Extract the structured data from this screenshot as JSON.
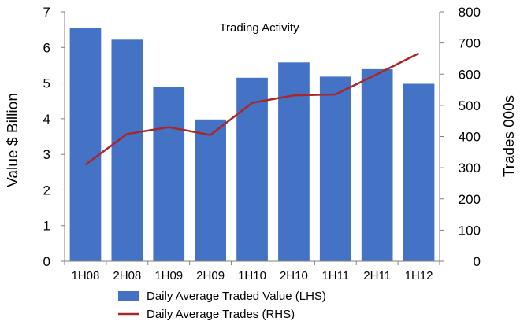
{
  "chart_data": {
    "type": "bar",
    "title": "Trading Activity",
    "categories": [
      "1H08",
      "2H08",
      "1H09",
      "2H09",
      "1H10",
      "2H10",
      "1H11",
      "2H11",
      "1H12"
    ],
    "series": [
      {
        "name": "Daily Average Traded Value (LHS)",
        "type": "bar",
        "axis": "left",
        "color": "#4472C4",
        "values": [
          6.55,
          6.22,
          4.88,
          3.98,
          5.15,
          5.58,
          5.18,
          5.39,
          4.98
        ]
      },
      {
        "name": "Daily Average Trades (RHS)",
        "type": "line",
        "axis": "right",
        "color": "#A8282A",
        "values": [
          310,
          408,
          430,
          405,
          508,
          532,
          535,
          600,
          667
        ]
      }
    ],
    "ylabel_left": "Value $ Billion",
    "ylabel_right": "Trades 000s",
    "ylim_left": [
      0,
      7
    ],
    "ylim_right": [
      0,
      800
    ],
    "yticks_left": [
      "0",
      "1",
      "2",
      "3",
      "4",
      "5",
      "6",
      "7"
    ],
    "yticks_right": [
      "0",
      "100",
      "200",
      "300",
      "400",
      "500",
      "600",
      "700",
      "800"
    ],
    "grid": false,
    "legend_position": "bottom"
  }
}
